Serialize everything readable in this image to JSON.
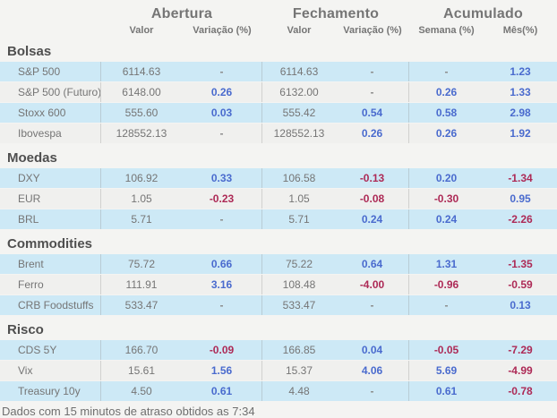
{
  "colors": {
    "positive": "#4a6bce",
    "negative": "#ad2a56",
    "dash": "#8a8a8a",
    "row_highlight": "#cde9f6",
    "row_alt": "#f0f0ee",
    "text": "#757575"
  },
  "header": {
    "groups": [
      {
        "label": "Abertura",
        "sub": [
          "Valor",
          "Variação (%)"
        ]
      },
      {
        "label": "Fechamento",
        "sub": [
          "Valor",
          "Variação (%)"
        ]
      },
      {
        "label": "Acumulado",
        "sub": [
          "Semana (%)",
          "Mês(%)"
        ]
      }
    ]
  },
  "sections": [
    {
      "title": "Bolsas",
      "rows": [
        {
          "label": "S&P 500",
          "open_value": "6114.63",
          "open_change": "-",
          "close_value": "6114.63",
          "close_change": "-",
          "week": "-",
          "month": "1.23"
        },
        {
          "label": "S&P 500 (Futuro)",
          "open_value": "6148.00",
          "open_change": "0.26",
          "close_value": "6132.00",
          "close_change": "-",
          "week": "0.26",
          "month": "1.33"
        },
        {
          "label": "Stoxx 600",
          "open_value": "555.60",
          "open_change": "0.03",
          "close_value": "555.42",
          "close_change": "0.54",
          "week": "0.58",
          "month": "2.98"
        },
        {
          "label": "Ibovespa",
          "open_value": "128552.13",
          "open_change": "-",
          "close_value": "128552.13",
          "close_change": "0.26",
          "week": "0.26",
          "month": "1.92"
        }
      ]
    },
    {
      "title": "Moedas",
      "rows": [
        {
          "label": "DXY",
          "open_value": "106.92",
          "open_change": "0.33",
          "close_value": "106.58",
          "close_change": "-0.13",
          "week": "0.20",
          "month": "-1.34"
        },
        {
          "label": "EUR",
          "open_value": "1.05",
          "open_change": "-0.23",
          "close_value": "1.05",
          "close_change": "-0.08",
          "week": "-0.30",
          "month": "0.95"
        },
        {
          "label": "BRL",
          "open_value": "5.71",
          "open_change": "-",
          "close_value": "5.71",
          "close_change": "0.24",
          "week": "0.24",
          "month": "-2.26"
        }
      ]
    },
    {
      "title": "Commodities",
      "rows": [
        {
          "label": "Brent",
          "open_value": "75.72",
          "open_change": "0.66",
          "close_value": "75.22",
          "close_change": "0.64",
          "week": "1.31",
          "month": "-1.35"
        },
        {
          "label": "Ferro",
          "open_value": "111.91",
          "open_change": "3.16",
          "close_value": "108.48",
          "close_change": "-4.00",
          "week": "-0.96",
          "month": "-0.59"
        },
        {
          "label": "CRB Foodstuffs",
          "open_value": "533.47",
          "open_change": "-",
          "close_value": "533.47",
          "close_change": "-",
          "week": "-",
          "month": "0.13"
        }
      ]
    },
    {
      "title": "Risco",
      "rows": [
        {
          "label": "CDS 5Y",
          "open_value": "166.70",
          "open_change": "-0.09",
          "close_value": "166.85",
          "close_change": "0.04",
          "week": "-0.05",
          "month": "-7.29"
        },
        {
          "label": "Vix",
          "open_value": "15.61",
          "open_change": "1.56",
          "close_value": "15.37",
          "close_change": "4.06",
          "week": "5.69",
          "month": "-4.99"
        },
        {
          "label": "Treasury 10y",
          "open_value": "4.50",
          "open_change": "0.61",
          "close_value": "4.48",
          "close_change": "-",
          "week": "0.61",
          "month": "-0.78"
        }
      ]
    }
  ],
  "footer": "Dados com 15 minutos de atraso obtidos as 7:34"
}
